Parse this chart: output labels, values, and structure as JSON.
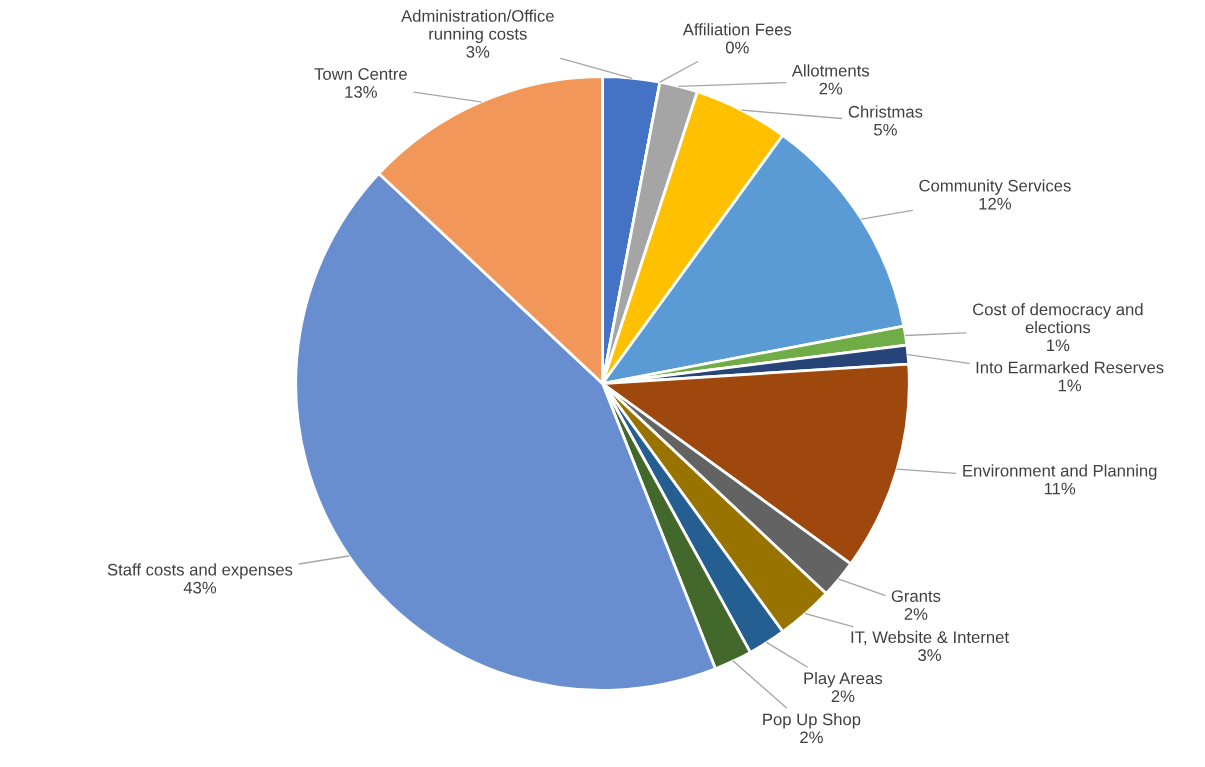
{
  "chart_data": {
    "type": "pie",
    "categories": [
      "Administration/Office running costs",
      "Affiliation Fees",
      "Allotments",
      "Christmas",
      "Community Services",
      "Cost of democracy and elections",
      "Into Earmarked Reserves",
      "Environment and Planning",
      "Grants",
      "IT, Website & Internet",
      "Play Areas",
      "Pop Up Shop",
      "Staff costs and expenses",
      "Town Centre"
    ],
    "values": [
      3,
      0,
      2,
      5,
      12,
      1,
      1,
      11,
      2,
      3,
      2,
      2,
      43,
      13
    ],
    "value_labels": [
      "3%",
      "0%",
      "2%",
      "5%",
      "12%",
      "1%",
      "1%",
      "11%",
      "2%",
      "3%",
      "2%",
      "2%",
      "43%",
      "13%"
    ],
    "colors": [
      "#4472c4",
      "#ed7d31",
      "#a5a5a5",
      "#ffc000",
      "#5b9bd5",
      "#70ad47",
      "#264478",
      "#9e480e",
      "#636363",
      "#997300",
      "#255e91",
      "#43682b",
      "#698ed0",
      "#f1975a"
    ],
    "legend": false
  }
}
